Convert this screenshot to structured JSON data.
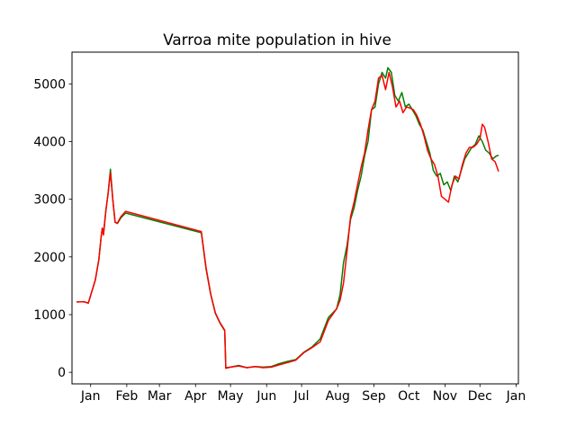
{
  "chart_data": {
    "type": "line",
    "title": "Varroa mite population in hive",
    "xlabel": "",
    "ylabel": "",
    "x_unit": "date",
    "xlim": [
      "2022-12-16",
      "2024-01-03"
    ],
    "ylim": [
      -200,
      5550
    ],
    "x_ticks": [
      {
        "date": "2023-01-01",
        "label": "Jan"
      },
      {
        "date": "2023-02-01",
        "label": "Feb"
      },
      {
        "date": "2023-03-01",
        "label": "Mar"
      },
      {
        "date": "2023-04-01",
        "label": "Apr"
      },
      {
        "date": "2023-05-01",
        "label": "May"
      },
      {
        "date": "2023-06-01",
        "label": "Jun"
      },
      {
        "date": "2023-07-01",
        "label": "Jul"
      },
      {
        "date": "2023-08-01",
        "label": "Aug"
      },
      {
        "date": "2023-09-01",
        "label": "Sep"
      },
      {
        "date": "2023-10-01",
        "label": "Oct"
      },
      {
        "date": "2023-11-01",
        "label": "Nov"
      },
      {
        "date": "2023-12-01",
        "label": "Dec"
      },
      {
        "date": "2024-01-01",
        "label": "Jan"
      }
    ],
    "y_ticks": [
      0,
      1000,
      2000,
      3000,
      4000,
      5000
    ],
    "grid": false,
    "legend": "none",
    "series": [
      {
        "color": "#008000",
        "points": [
          [
            "2022-12-20",
            1220
          ],
          [
            "2022-12-26",
            1225
          ],
          [
            "2022-12-30",
            1200
          ],
          [
            "2023-01-05",
            1600
          ],
          [
            "2023-01-08",
            1950
          ],
          [
            "2023-01-10",
            2350
          ],
          [
            "2023-01-11",
            2500
          ],
          [
            "2023-01-12",
            2400
          ],
          [
            "2023-01-14",
            2800
          ],
          [
            "2023-01-16",
            3100
          ],
          [
            "2023-01-18",
            3520
          ],
          [
            "2023-01-20",
            3000
          ],
          [
            "2023-01-22",
            2600
          ],
          [
            "2023-01-24",
            2580
          ],
          [
            "2023-01-27",
            2680
          ],
          [
            "2023-01-31",
            2760
          ],
          [
            "2023-04-06",
            2420
          ],
          [
            "2023-04-10",
            1800
          ],
          [
            "2023-04-14",
            1350
          ],
          [
            "2023-04-18",
            1020
          ],
          [
            "2023-04-22",
            850
          ],
          [
            "2023-04-26",
            720
          ],
          [
            "2023-04-27",
            80
          ],
          [
            "2023-05-01",
            90
          ],
          [
            "2023-05-08",
            120
          ],
          [
            "2023-05-15",
            80
          ],
          [
            "2023-05-22",
            100
          ],
          [
            "2023-05-29",
            90
          ],
          [
            "2023-06-05",
            100
          ],
          [
            "2023-06-12",
            150
          ],
          [
            "2023-06-19",
            190
          ],
          [
            "2023-06-26",
            220
          ],
          [
            "2023-07-03",
            350
          ],
          [
            "2023-07-10",
            440
          ],
          [
            "2023-07-17",
            580
          ],
          [
            "2023-07-24",
            950
          ],
          [
            "2023-07-31",
            1100
          ],
          [
            "2023-08-03",
            1350
          ],
          [
            "2023-08-06",
            1900
          ],
          [
            "2023-08-09",
            2200
          ],
          [
            "2023-08-12",
            2650
          ],
          [
            "2023-08-15",
            2850
          ],
          [
            "2023-08-18",
            3150
          ],
          [
            "2023-08-21",
            3400
          ],
          [
            "2023-08-24",
            3750
          ],
          [
            "2023-08-27",
            4000
          ],
          [
            "2023-08-30",
            4550
          ],
          [
            "2023-09-02",
            4600
          ],
          [
            "2023-09-05",
            5000
          ],
          [
            "2023-09-08",
            5200
          ],
          [
            "2023-09-11",
            5100
          ],
          [
            "2023-09-13",
            5280
          ],
          [
            "2023-09-16",
            5200
          ],
          [
            "2023-09-19",
            4800
          ],
          [
            "2023-09-22",
            4700
          ],
          [
            "2023-09-25",
            4850
          ],
          [
            "2023-09-28",
            4600
          ],
          [
            "2023-10-01",
            4650
          ],
          [
            "2023-10-04",
            4550
          ],
          [
            "2023-10-07",
            4450
          ],
          [
            "2023-10-10",
            4300
          ],
          [
            "2023-10-13",
            4200
          ],
          [
            "2023-10-16",
            4000
          ],
          [
            "2023-10-19",
            3800
          ],
          [
            "2023-10-22",
            3500
          ],
          [
            "2023-10-25",
            3400
          ],
          [
            "2023-10-28",
            3450
          ],
          [
            "2023-10-31",
            3250
          ],
          [
            "2023-11-03",
            3300
          ],
          [
            "2023-11-06",
            3150
          ],
          [
            "2023-11-09",
            3400
          ],
          [
            "2023-11-12",
            3300
          ],
          [
            "2023-11-15",
            3500
          ],
          [
            "2023-11-18",
            3700
          ],
          [
            "2023-11-21",
            3800
          ],
          [
            "2023-11-24",
            3900
          ],
          [
            "2023-11-27",
            3950
          ],
          [
            "2023-11-30",
            4100
          ],
          [
            "2023-12-03",
            4000
          ],
          [
            "2023-12-06",
            3850
          ],
          [
            "2023-12-09",
            3800
          ],
          [
            "2023-12-12",
            3700
          ],
          [
            "2023-12-15",
            3750
          ],
          [
            "2023-12-17",
            3760
          ]
        ]
      },
      {
        "color": "#ff0000",
        "points": [
          [
            "2022-12-20",
            1220
          ],
          [
            "2022-12-26",
            1225
          ],
          [
            "2022-12-30",
            1200
          ],
          [
            "2023-01-05",
            1600
          ],
          [
            "2023-01-08",
            1950
          ],
          [
            "2023-01-10",
            2350
          ],
          [
            "2023-01-11",
            2500
          ],
          [
            "2023-01-12",
            2380
          ],
          [
            "2023-01-14",
            2800
          ],
          [
            "2023-01-16",
            3100
          ],
          [
            "2023-01-18",
            3460
          ],
          [
            "2023-01-20",
            3000
          ],
          [
            "2023-01-22",
            2600
          ],
          [
            "2023-01-24",
            2590
          ],
          [
            "2023-01-27",
            2700
          ],
          [
            "2023-01-31",
            2790
          ],
          [
            "2023-04-06",
            2440
          ],
          [
            "2023-04-10",
            1820
          ],
          [
            "2023-04-14",
            1360
          ],
          [
            "2023-04-18",
            1030
          ],
          [
            "2023-04-22",
            860
          ],
          [
            "2023-04-26",
            730
          ],
          [
            "2023-04-27",
            70
          ],
          [
            "2023-05-01",
            90
          ],
          [
            "2023-05-08",
            110
          ],
          [
            "2023-05-15",
            80
          ],
          [
            "2023-05-22",
            100
          ],
          [
            "2023-05-29",
            80
          ],
          [
            "2023-06-05",
            90
          ],
          [
            "2023-06-12",
            130
          ],
          [
            "2023-06-19",
            170
          ],
          [
            "2023-06-26",
            210
          ],
          [
            "2023-07-03",
            340
          ],
          [
            "2023-07-10",
            430
          ],
          [
            "2023-07-17",
            530
          ],
          [
            "2023-07-24",
            900
          ],
          [
            "2023-07-31",
            1100
          ],
          [
            "2023-08-03",
            1250
          ],
          [
            "2023-08-06",
            1550
          ],
          [
            "2023-08-09",
            2100
          ],
          [
            "2023-08-12",
            2700
          ],
          [
            "2023-08-15",
            2950
          ],
          [
            "2023-08-18",
            3250
          ],
          [
            "2023-08-21",
            3550
          ],
          [
            "2023-08-24",
            3800
          ],
          [
            "2023-08-27",
            4200
          ],
          [
            "2023-08-30",
            4550
          ],
          [
            "2023-09-02",
            4700
          ],
          [
            "2023-09-05",
            5100
          ],
          [
            "2023-09-08",
            5150
          ],
          [
            "2023-09-11",
            4900
          ],
          [
            "2023-09-14",
            5200
          ],
          [
            "2023-09-17",
            4950
          ],
          [
            "2023-09-20",
            4600
          ],
          [
            "2023-09-23",
            4700
          ],
          [
            "2023-09-26",
            4500
          ],
          [
            "2023-09-29",
            4600
          ],
          [
            "2023-10-02",
            4580
          ],
          [
            "2023-10-05",
            4550
          ],
          [
            "2023-10-08",
            4450
          ],
          [
            "2023-10-11",
            4300
          ],
          [
            "2023-10-14",
            4100
          ],
          [
            "2023-10-17",
            3850
          ],
          [
            "2023-10-20",
            3700
          ],
          [
            "2023-10-23",
            3600
          ],
          [
            "2023-10-26",
            3400
          ],
          [
            "2023-10-29",
            3050
          ],
          [
            "2023-11-01",
            3000
          ],
          [
            "2023-11-04",
            2950
          ],
          [
            "2023-11-07",
            3250
          ],
          [
            "2023-11-10",
            3400
          ],
          [
            "2023-11-13",
            3350
          ],
          [
            "2023-11-16",
            3600
          ],
          [
            "2023-11-19",
            3800
          ],
          [
            "2023-11-22",
            3900
          ],
          [
            "2023-11-25",
            3900
          ],
          [
            "2023-11-28",
            3950
          ],
          [
            "2023-12-01",
            4050
          ],
          [
            "2023-12-03",
            4300
          ],
          [
            "2023-12-05",
            4250
          ],
          [
            "2023-12-08",
            4000
          ],
          [
            "2023-12-11",
            3700
          ],
          [
            "2023-12-14",
            3650
          ],
          [
            "2023-12-17",
            3480
          ]
        ]
      }
    ]
  }
}
